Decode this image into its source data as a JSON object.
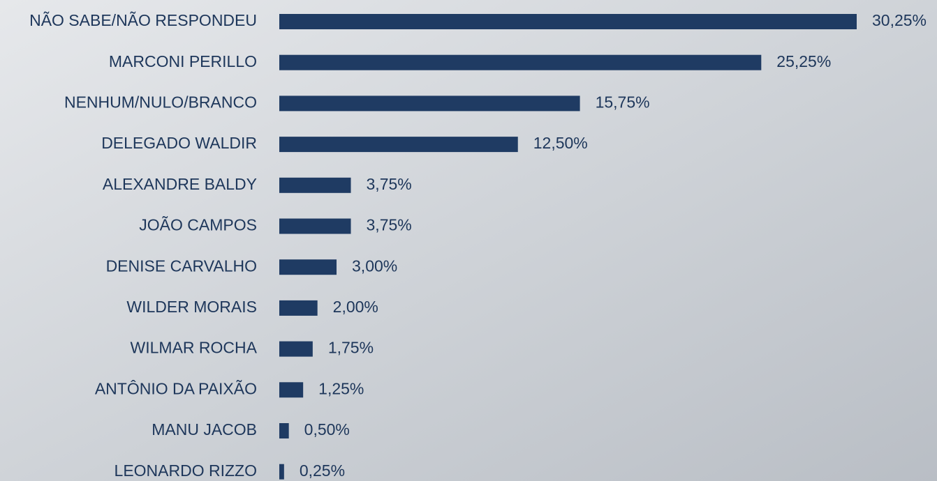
{
  "chart_data": {
    "type": "bar",
    "orientation": "horizontal",
    "color": "#1f3b63",
    "categories": [
      "NÃO SABE/NÃO RESPONDEU",
      "MARCONI PERILLO",
      "NENHUM/NULO/BRANCO",
      "DELEGADO WALDIR",
      "ALEXANDRE BALDY",
      "JOÃO CAMPOS",
      "DENISE CARVALHO",
      "WILDER MORAIS",
      "WILMAR ROCHA",
      "ANTÔNIO DA PAIXÃO",
      "MANU JACOB",
      "LEONARDO RIZZO"
    ],
    "values": [
      30.25,
      25.25,
      15.75,
      12.5,
      3.75,
      3.75,
      3.0,
      2.0,
      1.75,
      1.25,
      0.5,
      0.25
    ],
    "value_labels": [
      "30,25%",
      "25,25%",
      "15,75%",
      "12,50%",
      "3,75%",
      "3,75%",
      "3,00%",
      "2,00%",
      "1,75%",
      "1,25%",
      "0,50%",
      "0,25%"
    ]
  }
}
